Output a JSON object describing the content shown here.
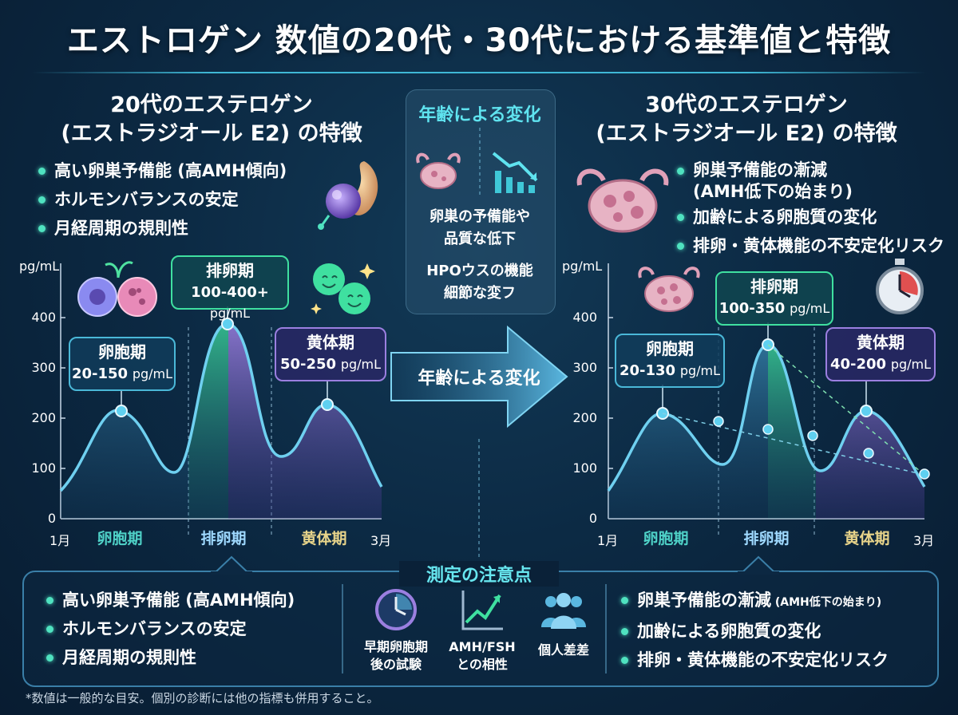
{
  "title": "エストロゲン 数値の20代・30代における基準値と特徴",
  "left": {
    "heading1": "20代のエステロゲン",
    "heading2": "(エストラジオール E2) の特徴",
    "bullets": [
      "高い卵巣予備能 (高AMH傾向)",
      "ホルモンバランスの安定",
      "月経周期の規則性"
    ]
  },
  "right": {
    "heading1": "30代のエステロゲン",
    "heading2": "(エストラジオール E2) の特徴",
    "bullets": [
      "卵巣予備能の漸減",
      "(AMH低下の始まり)",
      "加齢による卵胞質の変化",
      "排卵・黄体機能の不安定化リスク"
    ]
  },
  "center": {
    "title": "年齢による変化",
    "text1a": "卵巣の予備能や",
    "text1b": "品質な低下",
    "text2a": "HPOウスの機能",
    "text2b": "細節な変フ",
    "arrow_label": "年齢による変化"
  },
  "chart_left": {
    "unit": "pg/mL",
    "yticks": [
      "400",
      "300",
      "200",
      "100",
      "0"
    ],
    "x_start": "1月",
    "x_end": "3月",
    "phases": [
      "卵胞期",
      "排卵期",
      "黄体期"
    ],
    "callouts": [
      {
        "name": "卵胞期",
        "range": "20-150",
        "unit": "pg/mL"
      },
      {
        "name": "排卵期",
        "range": "100-400+",
        "unit": "pg/mL"
      },
      {
        "name": "黄体期",
        "range": "50-250",
        "unit": "pg/mL"
      }
    ]
  },
  "chart_right": {
    "unit": "pg/mL",
    "yticks": [
      "400",
      "300",
      "200",
      "100",
      "0"
    ],
    "x_start": "1月",
    "x_end": "3月",
    "phases": [
      "卵胞期",
      "排卵期",
      "黄体期"
    ],
    "callouts": [
      {
        "name": "卵胞期",
        "range": "20-130",
        "unit": "pg/mL"
      },
      {
        "name": "排卵期",
        "range": "100-350",
        "unit": "pg/mL"
      },
      {
        "name": "黄体期",
        "range": "40-200",
        "unit": "pg/mL"
      }
    ]
  },
  "notes": {
    "title": "測定の注意点",
    "left_bullets": [
      "高い卵巣予備能 (高AMH傾向)",
      "ホルモンバランスの安定",
      "月経周期の規則性"
    ],
    "icons": [
      {
        "icon": "clock-icon",
        "line1": "早期卵胞期",
        "line2": "後の試験"
      },
      {
        "icon": "trend-chart-icon",
        "line1": "AMH/FSH",
        "line2": "との相性"
      },
      {
        "icon": "people-icon",
        "line1": "個人差差",
        "line2": ""
      }
    ],
    "right_b1_main": "卵巣予備能の漸減",
    "right_b1_small": " (AMH低下の始まり)",
    "right_b2": "加齢による卵胞質の変化",
    "right_b3": "排卵・黄体機能の不安定化リスク"
  },
  "footnote": "*数値は一般的な目安。個別の診断には他の指標も併用すること。",
  "colors": {
    "teal": "#4fe2c0",
    "cyan": "#5fe3ef",
    "blue": "#58b8e0",
    "purple": "#9b7fe0",
    "green": "#3fe0a0"
  }
}
